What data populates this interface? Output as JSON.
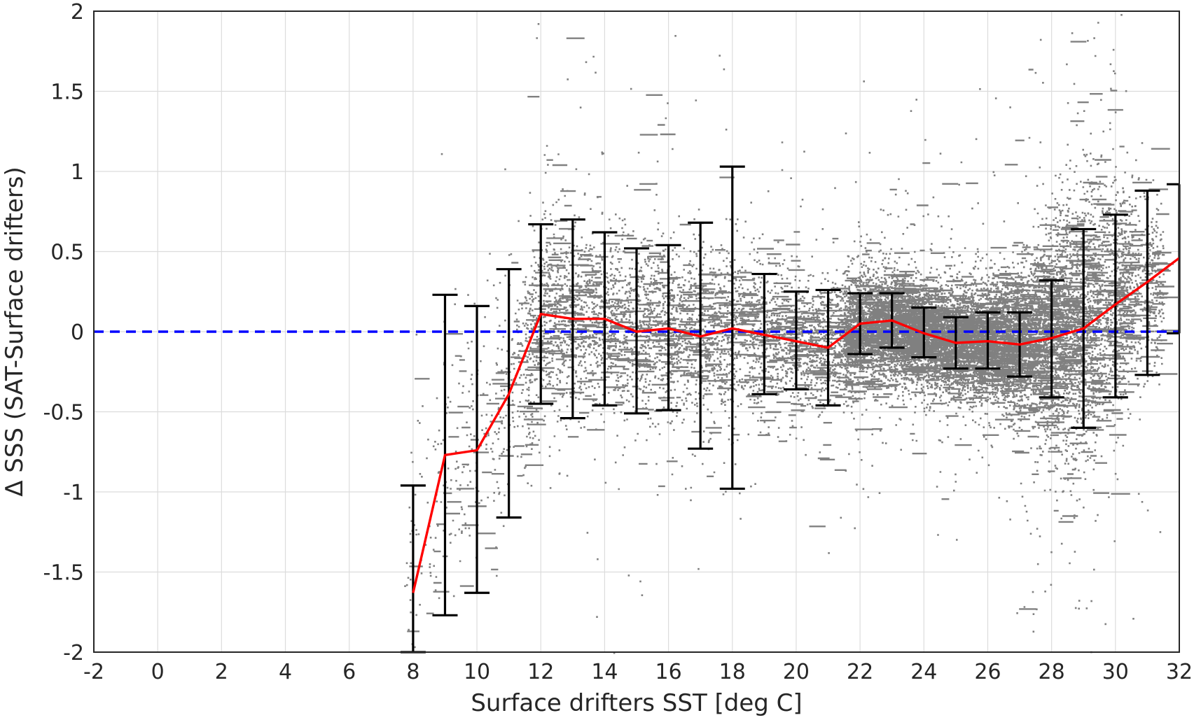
{
  "chart_data": {
    "type": "scatter",
    "xlabel": "Surface drifters SST [deg C]",
    "ylabel": "Δ SSS (SAT-Surface drifters)",
    "xlim": [
      -2,
      32
    ],
    "ylim": [
      -2,
      2
    ],
    "xticks": [
      -2,
      0,
      2,
      4,
      6,
      8,
      10,
      12,
      14,
      16,
      18,
      20,
      22,
      24,
      26,
      28,
      30,
      32
    ],
    "yticks": [
      -2,
      -1.5,
      -1,
      -0.5,
      0,
      0.5,
      1,
      1.5,
      2
    ],
    "ytick_labels": [
      "-2",
      "-1.5",
      "-1",
      "-0.5",
      "0",
      "0.5",
      "1",
      "1.5",
      "2"
    ],
    "grid": true,
    "colors": {
      "scatter": "#808080",
      "mean_line": "#ff0000",
      "zero_line": "#0000ff",
      "error_bars": "#000000"
    },
    "zero_line": {
      "y": 0,
      "style": "dashed"
    },
    "binned": {
      "x": [
        8,
        9,
        10,
        11,
        12,
        13,
        14,
        15,
        16,
        17,
        18,
        19,
        20,
        21,
        22,
        23,
        24,
        25,
        26,
        27,
        28,
        29,
        30,
        31,
        32
      ],
      "mean": [
        -1.63,
        -0.77,
        -0.74,
        -0.39,
        0.11,
        0.08,
        0.08,
        0.0,
        0.02,
        -0.03,
        0.02,
        -0.02,
        -0.06,
        -0.1,
        0.05,
        0.07,
        -0.01,
        -0.07,
        -0.06,
        -0.08,
        -0.04,
        0.02,
        0.17,
        0.31,
        0.46
      ],
      "lower": [
        -2.0,
        -1.77,
        -1.63,
        -1.16,
        -0.45,
        -0.54,
        -0.46,
        -0.51,
        -0.49,
        -0.73,
        -0.98,
        -0.39,
        -0.36,
        -0.46,
        -0.14,
        -0.1,
        -0.16,
        -0.23,
        -0.23,
        -0.28,
        -0.41,
        -0.6,
        -0.41,
        -0.27,
        -0.01
      ],
      "upper": [
        -0.96,
        0.23,
        0.16,
        0.39,
        0.67,
        0.7,
        0.62,
        0.52,
        0.54,
        0.68,
        1.03,
        0.36,
        0.25,
        0.26,
        0.24,
        0.24,
        0.15,
        0.09,
        0.12,
        0.12,
        0.32,
        0.64,
        0.73,
        0.88,
        0.92
      ]
    },
    "scatter_envelope": {
      "x": [
        8,
        9,
        10,
        11,
        12,
        13,
        14,
        15,
        16,
        17,
        18,
        19,
        20,
        21,
        22,
        23,
        24,
        25,
        26,
        27,
        28,
        29,
        30,
        31
      ],
      "center": [
        -1.4,
        -0.8,
        -0.7,
        -0.35,
        0.1,
        0.08,
        0.06,
        0.02,
        0.02,
        -0.02,
        0.0,
        -0.02,
        -0.06,
        -0.08,
        0.05,
        0.05,
        -0.02,
        -0.06,
        -0.06,
        -0.06,
        -0.02,
        0.05,
        0.18,
        0.3
      ],
      "spread": [
        0.45,
        0.45,
        0.4,
        0.35,
        0.32,
        0.3,
        0.28,
        0.28,
        0.27,
        0.27,
        0.26,
        0.24,
        0.22,
        0.2,
        0.17,
        0.16,
        0.16,
        0.17,
        0.18,
        0.22,
        0.35,
        0.45,
        0.35,
        0.3
      ],
      "density": [
        60,
        90,
        90,
        160,
        420,
        420,
        420,
        420,
        420,
        380,
        380,
        380,
        380,
        450,
        1200,
        1400,
        1400,
        1400,
        1400,
        1300,
        1300,
        1000,
        700,
        350
      ]
    }
  }
}
